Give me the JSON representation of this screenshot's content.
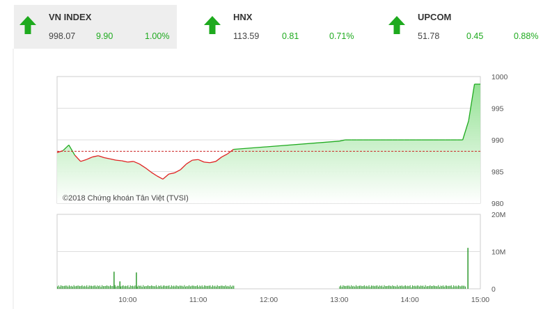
{
  "indices": [
    {
      "name": "VN INDEX",
      "price": "998.07",
      "change": "9.90",
      "percent": "1.00%",
      "active": true
    },
    {
      "name": "HNX",
      "price": "113.59",
      "change": "0.81",
      "percent": "0.71%",
      "active": false
    },
    {
      "name": "UPCOM",
      "price": "51.78",
      "change": "0.45",
      "percent": "0.88%",
      "active": false
    }
  ],
  "colors": {
    "up": "#1eaa1e",
    "down": "#e02020",
    "area": "#9be39b",
    "reference": "#cc2222",
    "volume": "#2e9a2e"
  },
  "chart_data": [
    {
      "type": "area",
      "copyright": "©2018 Chứng khoán Tân Việt (TVSI)",
      "reference_value": 988.2,
      "ylim": [
        980,
        1000
      ],
      "yticks": [
        "1000",
        "995",
        "990",
        "985",
        "980"
      ],
      "grid": true,
      "x_times": [
        "9:00",
        "9:05",
        "9:10",
        "9:15",
        "9:20",
        "9:25",
        "9:30",
        "9:35",
        "9:40",
        "9:45",
        "9:50",
        "9:55",
        "10:00",
        "10:05",
        "10:10",
        "10:15",
        "10:20",
        "10:25",
        "10:30",
        "10:35",
        "10:40",
        "10:45",
        "10:50",
        "10:55",
        "11:00",
        "11:05",
        "11:10",
        "11:15",
        "11:20",
        "11:25",
        "11:30",
        "13:00",
        "13:05",
        "13:10",
        "13:15",
        "13:20",
        "13:25",
        "13:30",
        "13:35",
        "13:40",
        "13:45",
        "13:50",
        "13:55",
        "14:00",
        "14:05",
        "14:10",
        "14:15",
        "14:20",
        "14:25",
        "14:30",
        "14:35",
        "14:40",
        "14:45"
      ],
      "values": [
        988.0,
        988.3,
        989.2,
        987.6,
        986.6,
        986.9,
        987.3,
        987.5,
        987.2,
        987.0,
        986.8,
        986.7,
        986.5,
        986.6,
        986.2,
        985.6,
        984.9,
        984.3,
        983.8,
        984.6,
        984.8,
        985.3,
        986.2,
        986.8,
        986.9,
        986.5,
        986.4,
        986.6,
        987.3,
        987.8,
        988.5,
        989.8,
        990.0,
        990.0,
        990.0,
        990.0,
        990.0,
        990.0,
        990.0,
        990.0,
        990.0,
        990.0,
        990.0,
        990.0,
        990.0,
        990.0,
        990.0,
        990.0,
        990.0,
        990.0,
        990.0,
        990.0,
        990.0
      ]
    },
    {
      "type": "bar",
      "ylim": [
        0,
        20
      ],
      "yticks": [
        "20M",
        "10M",
        "0"
      ],
      "xticks": [
        "10:00",
        "11:00",
        "12:00",
        "13:00",
        "14:00",
        "15:00"
      ],
      "volume_unit": "M",
      "notable_bars": [
        {
          "time": "9:48",
          "value": 4.6
        },
        {
          "time": "9:53",
          "value": 2.0
        },
        {
          "time": "10:07",
          "value": 4.4
        },
        {
          "time": "14:49",
          "value": 11.0
        }
      ]
    }
  ]
}
